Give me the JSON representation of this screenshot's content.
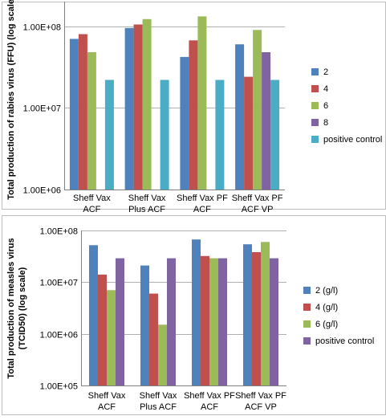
{
  "chart_data": [
    {
      "type": "bar",
      "title": "",
      "xlabel": "",
      "ylabel": "Total production of rabies virus (FFU) (log scale)",
      "yscale": "log",
      "ylim": [
        1000000,
        200000000
      ],
      "yticks": [
        1000000,
        10000000,
        100000000
      ],
      "ytick_labels": [
        "1.00E+06",
        "1.00E+07",
        "1.00E+08"
      ],
      "categories": [
        [
          "Sheff Vax",
          "ACF"
        ],
        [
          "Sheff Vax",
          "Plus ACF"
        ],
        [
          "Sheff Vax PF",
          "ACF"
        ],
        [
          "Sheff Vax PF",
          "ACF VP"
        ]
      ],
      "series": [
        {
          "name": "2",
          "color": "#4f81bd",
          "values": [
            70000000,
            95000000,
            42000000,
            60000000
          ]
        },
        {
          "name": "4",
          "color": "#c0504d",
          "values": [
            80000000,
            105000000,
            67000000,
            24000000
          ]
        },
        {
          "name": "6",
          "color": "#9bbb59",
          "values": [
            48000000,
            122000000,
            132000000,
            90000000
          ]
        },
        {
          "name": "8",
          "color": "#8064a2",
          "values": [
            null,
            null,
            null,
            48000000
          ]
        },
        {
          "name": "positive control",
          "color": "#4bacc6",
          "values": [
            22000000,
            22000000,
            22000000,
            22000000
          ]
        }
      ],
      "legend": "right",
      "grid": true
    },
    {
      "type": "bar",
      "title": "",
      "xlabel": "",
      "ylabel": [
        "Total production of measles virus",
        "(TCID50) (log scale)"
      ],
      "yscale": "log",
      "ylim": [
        100000,
        100000000
      ],
      "yticks": [
        100000,
        1000000,
        10000000,
        100000000
      ],
      "ytick_labels": [
        "1.00E+05",
        "1.00E+06",
        "1.00E+07",
        "1.00E+08"
      ],
      "categories": [
        [
          "Sheff Vax",
          "ACF"
        ],
        [
          "Sheff Vax",
          "Plus ACF"
        ],
        [
          "Sheff Vax PF",
          "ACF"
        ],
        [
          "Sheff Vax PF",
          "ACF VP"
        ]
      ],
      "series": [
        {
          "name": "2 (g/l)",
          "color": "#4f81bd",
          "values": [
            52000000,
            21000000,
            67000000,
            54000000
          ]
        },
        {
          "name": "4 (g/l)",
          "color": "#c0504d",
          "values": [
            14000000,
            6000000,
            32000000,
            38000000
          ]
        },
        {
          "name": "6 (g/l)",
          "color": "#9bbb59",
          "values": [
            7000000,
            1500000,
            29000000,
            60000000
          ]
        },
        {
          "name": "positive control",
          "color": "#8064a2",
          "values": [
            29000000,
            29000000,
            29000000,
            29000000
          ]
        }
      ],
      "legend": "right",
      "grid": true
    }
  ]
}
